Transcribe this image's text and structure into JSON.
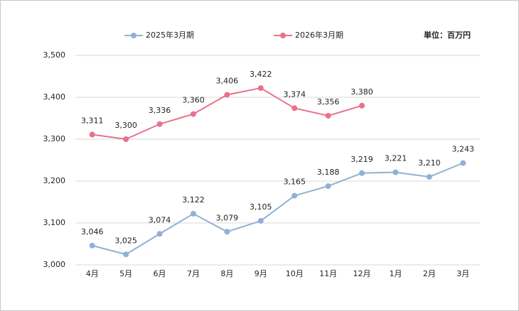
{
  "chart_data": {
    "type": "line",
    "unit": "単位：百万円",
    "categories": [
      "4月",
      "5月",
      "6月",
      "7月",
      "8月",
      "9月",
      "10月",
      "11月",
      "12月",
      "1月",
      "2月",
      "3月"
    ],
    "series": [
      {
        "name": "2025年3月期",
        "color": "#92b0d6",
        "values": [
          3046,
          3025,
          3074,
          3122,
          3079,
          3105,
          3165,
          3188,
          3219,
          3221,
          3210,
          3243
        ],
        "value_labels": [
          "3,046",
          "3,025",
          "3,074",
          "3,122",
          "3,079",
          "3,105",
          "3,165",
          "3,188",
          "3,219",
          "3,221",
          "3,210",
          "3,243"
        ]
      },
      {
        "name": "2026年3月期",
        "color": "#e8728a",
        "values": [
          3311,
          3300,
          3336,
          3360,
          3406,
          3422,
          3374,
          3356,
          3380,
          null,
          null,
          null
        ],
        "value_labels": [
          "3,311",
          "3,300",
          "3,336",
          "3,360",
          "3,406",
          "3,422",
          "3,374",
          "3,356",
          "3,380",
          null,
          null,
          null
        ]
      }
    ],
    "ylim": [
      3000,
      3500
    ],
    "yticks": [
      {
        "value": 3000,
        "label": "3,000"
      },
      {
        "value": 3100,
        "label": "3,100"
      },
      {
        "value": 3200,
        "label": "3,200"
      },
      {
        "value": 3300,
        "label": "3,300"
      },
      {
        "value": 3400,
        "label": "3,400"
      },
      {
        "value": 3500,
        "label": "3,500"
      }
    ],
    "grid": true,
    "legend": "top"
  }
}
